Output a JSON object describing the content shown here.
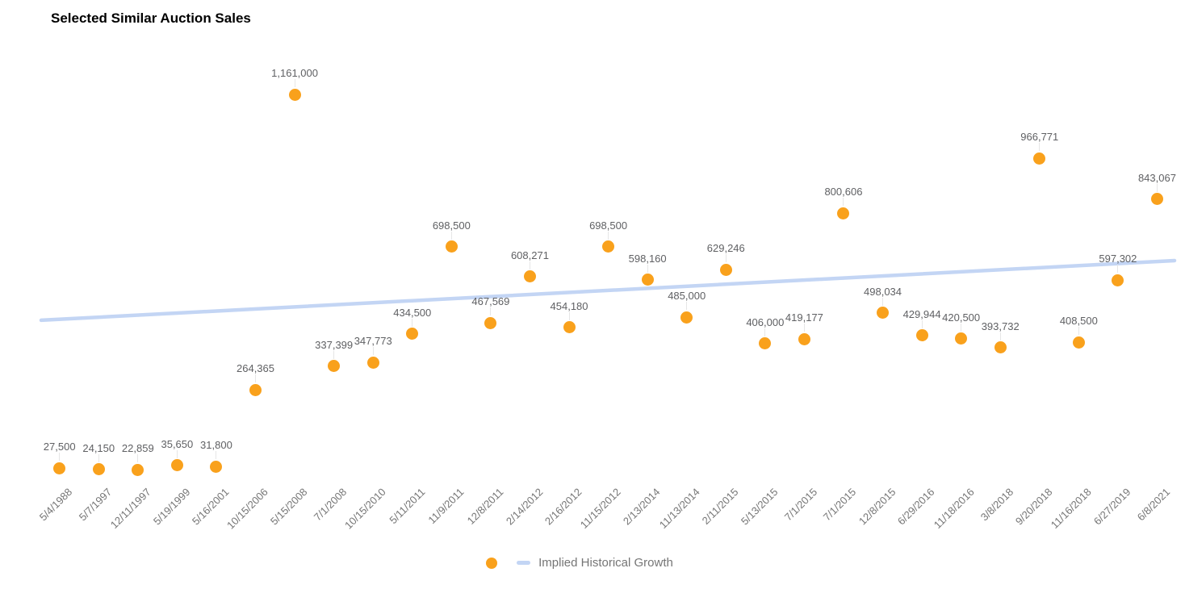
{
  "title": "Selected Similar Auction Sales",
  "legend": {
    "series_icon": "orange-point",
    "trend_label": "Implied Historical Growth"
  },
  "colors": {
    "point": "#F9A11C",
    "trend_line": "#C3D5F4",
    "point_label": "#5F6063",
    "axis_label": "#757575",
    "stem": "#E6E6E6",
    "title": "#000000",
    "legend_text": "#757575",
    "background": "#FFFFFF"
  },
  "chart_data": {
    "type": "scatter",
    "title": "Selected Similar Auction Sales",
    "xlabel": "",
    "ylabel": "",
    "grid": false,
    "legend_position": "bottom",
    "ylim": [
      0,
      1300000
    ],
    "categories": [
      "5/4/1988",
      "5/7/1997",
      "12/11/1997",
      "5/19/1999",
      "5/16/2001",
      "10/15/2006",
      "5/15/2008",
      "7/1/2008",
      "10/15/2010",
      "5/11/2011",
      "11/9/2011",
      "12/8/2011",
      "2/14/2012",
      "2/16/2012",
      "11/15/2012",
      "2/13/2014",
      "11/13/2014",
      "2/11/2015",
      "5/13/2015",
      "7/1/2015",
      "7/1/2015",
      "12/8/2015",
      "6/29/2016",
      "11/18/2016",
      "3/8/2018",
      "9/20/2018",
      "11/16/2018",
      "6/27/2019",
      "6/8/2021"
    ],
    "values": [
      27500,
      24150,
      22859,
      35650,
      31800,
      264365,
      1161000,
      337399,
      347773,
      434500,
      698500,
      467569,
      608271,
      454180,
      698500,
      598160,
      485000,
      629246,
      406000,
      419177,
      800606,
      498034,
      429944,
      420500,
      393732,
      966771,
      408500,
      597302,
      843067
    ],
    "labels": [
      "27,500",
      "24,150",
      "22,859",
      "35,650",
      "31,800",
      "264,365",
      "1,161,000",
      "337,399",
      "347,773",
      "434,500",
      "698,500",
      "467,569",
      "608,271",
      "454,180",
      "698,500",
      "598,160",
      "485,000",
      "629,246",
      "406,000",
      "419,177",
      "800,606",
      "498,034",
      "429,944",
      "420,500",
      "393,732",
      "966,771",
      "408,500",
      "597,302",
      "843,067"
    ],
    "series_name": "Auction Sales",
    "trendline": {
      "name": "Implied Historical Growth",
      "start_value": 476000,
      "end_value": 657000
    }
  }
}
